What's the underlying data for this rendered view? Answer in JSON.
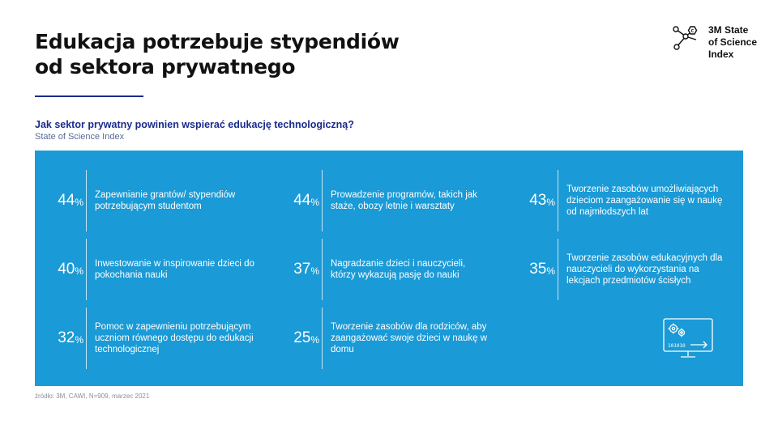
{
  "header": {
    "title_line1": "Edukacja potrzebuje stypendiów",
    "title_line2": "od sektora prywatnego"
  },
  "brand": {
    "line1": "3M State",
    "line2": "of Science",
    "line3": "Index",
    "icon": "molecule-icon"
  },
  "question": "Jak sektor prywatny powinien wspierać edukację technologiczną?",
  "subtitle": "State of Science Index",
  "colors": {
    "panel": "#1a9ad6",
    "title_rule": "#1a2b8c",
    "question": "#1a2b8c"
  },
  "items": [
    {
      "value": "44",
      "unit": "%",
      "text": "Zapewnianie grantów/ stypendiów potrzebującym studentom"
    },
    {
      "value": "44",
      "unit": "%",
      "text": "Prowadzenie programów, takich jak staże, obozy letnie i warsztaty"
    },
    {
      "value": "43",
      "unit": "%",
      "text": "Tworzenie zasobów umożliwiających dzieciom zaangażowanie się w naukę od najmłodszych lat"
    },
    {
      "value": "40",
      "unit": "%",
      "text": "Inwestowanie w inspirowanie dzieci do pokochania nauki"
    },
    {
      "value": "37",
      "unit": "%",
      "text": "Nagradzanie dzieci i nauczycieli, którzy wykazują pasję do nauki"
    },
    {
      "value": "35",
      "unit": "%",
      "text": "Tworzenie zasobów edukacyjnych dla nauczycieli do wykorzystania na lekcjach przedmiotów ścisłych"
    },
    {
      "value": "32",
      "unit": "%",
      "text": "Pomoc w zapewnieniu potrzebującym uczniom równego dostępu do edukacji technologicznej"
    },
    {
      "value": "25",
      "unit": "%",
      "text": "Tworzenie zasobów dla rodziców, aby zaangażować swoje dzieci w naukę w domu"
    }
  ],
  "device_icon": "computer-gears-icon",
  "source": "źródło: 3M, CAWI, N=909, marzec 2021"
}
